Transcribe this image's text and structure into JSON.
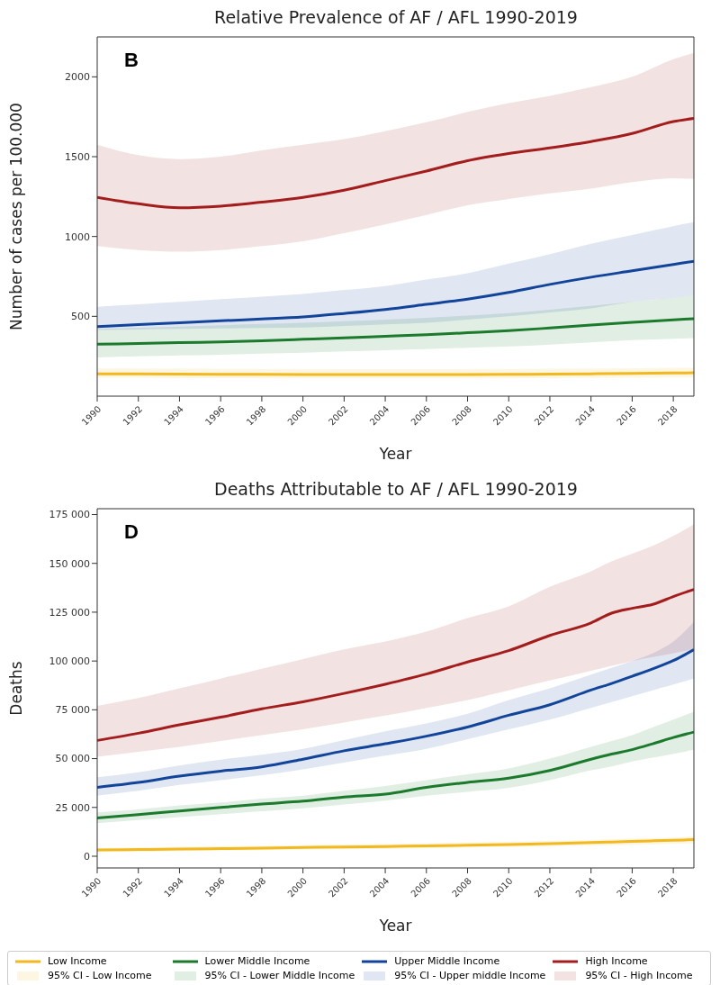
{
  "chart_data": [
    {
      "type": "line",
      "title": "Relative Prevalence of AF / AFL 1990-2019",
      "xlabel": "Year",
      "ylabel": "Number of cases per 100.000",
      "annotations": [
        "B"
      ],
      "x": [
        1990,
        1992,
        1994,
        1996,
        1998,
        2000,
        2002,
        2004,
        2006,
        2008,
        2010,
        2012,
        2014,
        2016,
        2018,
        2019
      ],
      "xlim": [
        1990,
        2019
      ],
      "xticks": [
        1990,
        1992,
        1994,
        1996,
        1998,
        2000,
        2002,
        2004,
        2006,
        2008,
        2010,
        2012,
        2014,
        2016,
        2018
      ],
      "ylim": [
        0,
        2250
      ],
      "yticks": [
        500,
        1000,
        1500,
        2000
      ],
      "legend": false,
      "line_style": "solid",
      "marker": "none",
      "series": [
        {
          "color": "#f2b81f",
          "values": [
            140,
            139,
            138,
            137,
            137,
            136,
            136,
            135,
            135,
            136,
            137,
            138,
            140,
            142,
            145,
            146
          ],
          "lower": [
            115,
            115,
            113,
            113,
            112,
            112,
            111,
            111,
            111,
            112,
            112,
            113,
            114,
            115,
            117,
            118
          ],
          "upper": [
            175,
            174,
            173,
            172,
            171,
            170,
            169,
            169,
            169,
            170,
            171,
            172,
            173,
            175,
            177,
            178
          ]
        },
        {
          "color": "#1b7a2b",
          "values": [
            325,
            330,
            335,
            340,
            347,
            356,
            365,
            375,
            385,
            397,
            410,
            427,
            445,
            462,
            478,
            485
          ],
          "lower": [
            243,
            249,
            255,
            260,
            266,
            272,
            280,
            288,
            295,
            303,
            311,
            323,
            337,
            351,
            360,
            364
          ],
          "upper": [
            420,
            428,
            436,
            444,
            452,
            460,
            470,
            480,
            490,
            505,
            520,
            542,
            565,
            590,
            615,
            630
          ]
        },
        {
          "color": "#12449a",
          "values": [
            435,
            448,
            460,
            472,
            483,
            496,
            518,
            543,
            575,
            608,
            650,
            700,
            745,
            785,
            825,
            845
          ],
          "lower": [
            415,
            418,
            421,
            424,
            427,
            430,
            440,
            450,
            460,
            480,
            500,
            525,
            550,
            590,
            615,
            630
          ],
          "upper": [
            560,
            575,
            590,
            607,
            623,
            640,
            665,
            690,
            730,
            770,
            830,
            890,
            955,
            1010,
            1065,
            1090
          ]
        },
        {
          "color": "#a31d1d",
          "values": [
            1245,
            1205,
            1180,
            1190,
            1215,
            1245,
            1290,
            1350,
            1410,
            1475,
            1520,
            1555,
            1595,
            1645,
            1720,
            1740
          ],
          "lower": [
            940,
            915,
            905,
            915,
            940,
            970,
            1020,
            1075,
            1135,
            1195,
            1235,
            1270,
            1300,
            1340,
            1365,
            1360
          ],
          "upper": [
            1575,
            1510,
            1485,
            1500,
            1540,
            1575,
            1610,
            1660,
            1715,
            1780,
            1835,
            1880,
            1935,
            2000,
            2110,
            2150
          ]
        }
      ]
    },
    {
      "type": "line",
      "title": "Deaths Attributable to AF / AFL 1990-2019",
      "xlabel": "Year",
      "ylabel": "Deaths",
      "annotations": [
        "D",
        "95% CI - Low Income",
        "95% CI - Lower Middle Income",
        "95% CI - Upper middle Income",
        "95% CI - High Income"
      ],
      "x": [
        1990,
        1992,
        1994,
        1996,
        1998,
        2000,
        2002,
        2004,
        2006,
        2008,
        2010,
        2012,
        2014,
        2015,
        2016,
        2017,
        2018,
        2019
      ],
      "xlim": [
        1990,
        2019
      ],
      "xticks": [
        1990,
        1992,
        1994,
        1996,
        1998,
        2000,
        2002,
        2004,
        2006,
        2008,
        2010,
        2012,
        2014,
        2016,
        2018
      ],
      "ylim": [
        -6000,
        178000
      ],
      "yticks": [
        {
          "value": 0,
          "label": "0"
        },
        {
          "value": 25000,
          "label": "25 000"
        },
        {
          "value": 50000,
          "label": "50 000"
        },
        {
          "value": 75000,
          "label": "75 000"
        },
        {
          "value": 100000,
          "label": "100 000"
        },
        {
          "value": 125000,
          "label": "125 000"
        },
        {
          "value": 150000,
          "label": "150 000"
        },
        {
          "value": 175000,
          "label": "175 000"
        }
      ],
      "legend": "bottom",
      "line_style": "solid",
      "marker": "none",
      "series": [
        {
          "name": "Low Income",
          "color": "#f2b81f",
          "values": [
            3200,
            3400,
            3700,
            3900,
            4200,
            4500,
            4700,
            5000,
            5300,
            5600,
            6000,
            6500,
            7000,
            7300,
            7600,
            7900,
            8200,
            8500
          ],
          "lower": [
            2200,
            2400,
            2700,
            2900,
            3100,
            3400,
            3600,
            3800,
            4100,
            4400,
            4700,
            5000,
            5400,
            5600,
            5800,
            6000,
            6300,
            6600
          ],
          "upper": [
            4200,
            4500,
            4800,
            5100,
            5400,
            5700,
            6000,
            6300,
            6700,
            7100,
            7500,
            7900,
            8400,
            8700,
            9000,
            9300,
            9700,
            10200
          ]
        },
        {
          "name": "Lower Middle Income",
          "color": "#1b7a2b",
          "values": [
            19600,
            21300,
            23200,
            25000,
            26700,
            28200,
            30300,
            31800,
            35300,
            37800,
            40000,
            43900,
            49700,
            52300,
            54600,
            57600,
            60800,
            63600
          ],
          "lower": [
            17000,
            18500,
            20000,
            21500,
            23000,
            24500,
            26500,
            28500,
            31000,
            33000,
            35000,
            39000,
            44000,
            46000,
            48500,
            50500,
            52500,
            54500
          ],
          "upper": [
            22500,
            24000,
            26000,
            27500,
            29500,
            31000,
            33500,
            36000,
            39000,
            42000,
            45000,
            50000,
            56000,
            59000,
            62000,
            66000,
            70000,
            74000
          ]
        },
        {
          "name": "Upper Middle Income",
          "color": "#12449a",
          "values": [
            35300,
            37800,
            41000,
            43600,
            45800,
            49700,
            54000,
            57600,
            61500,
            66200,
            72200,
            77600,
            85100,
            88500,
            92200,
            96000,
            100200,
            105800
          ],
          "lower": [
            31000,
            33500,
            36500,
            39000,
            41500,
            44500,
            48000,
            51500,
            55000,
            60000,
            65000,
            70000,
            76000,
            79000,
            82000,
            85000,
            88000,
            91000
          ],
          "upper": [
            40500,
            43000,
            46500,
            49500,
            52000,
            55000,
            59500,
            64000,
            68000,
            73000,
            80000,
            86000,
            93000,
            96500,
            100000,
            104000,
            110000,
            120000
          ]
        },
        {
          "name": "High Income",
          "color": "#a31d1d",
          "values": [
            59300,
            63000,
            67300,
            71200,
            75500,
            79100,
            83400,
            88100,
            93300,
            99500,
            105300,
            113100,
            119500,
            124500,
            127000,
            129000,
            133000,
            136700
          ],
          "lower": [
            51000,
            53500,
            56000,
            59000,
            62000,
            65000,
            68500,
            72000,
            76000,
            80000,
            85000,
            90000,
            95000,
            97500,
            100000,
            102000,
            104000,
            106000
          ],
          "upper": [
            77000,
            81000,
            86000,
            91000,
            96000,
            101000,
            106000,
            110000,
            115000,
            122000,
            128000,
            138000,
            146000,
            151000,
            155000,
            159000,
            164000,
            170000
          ]
        }
      ]
    }
  ]
}
